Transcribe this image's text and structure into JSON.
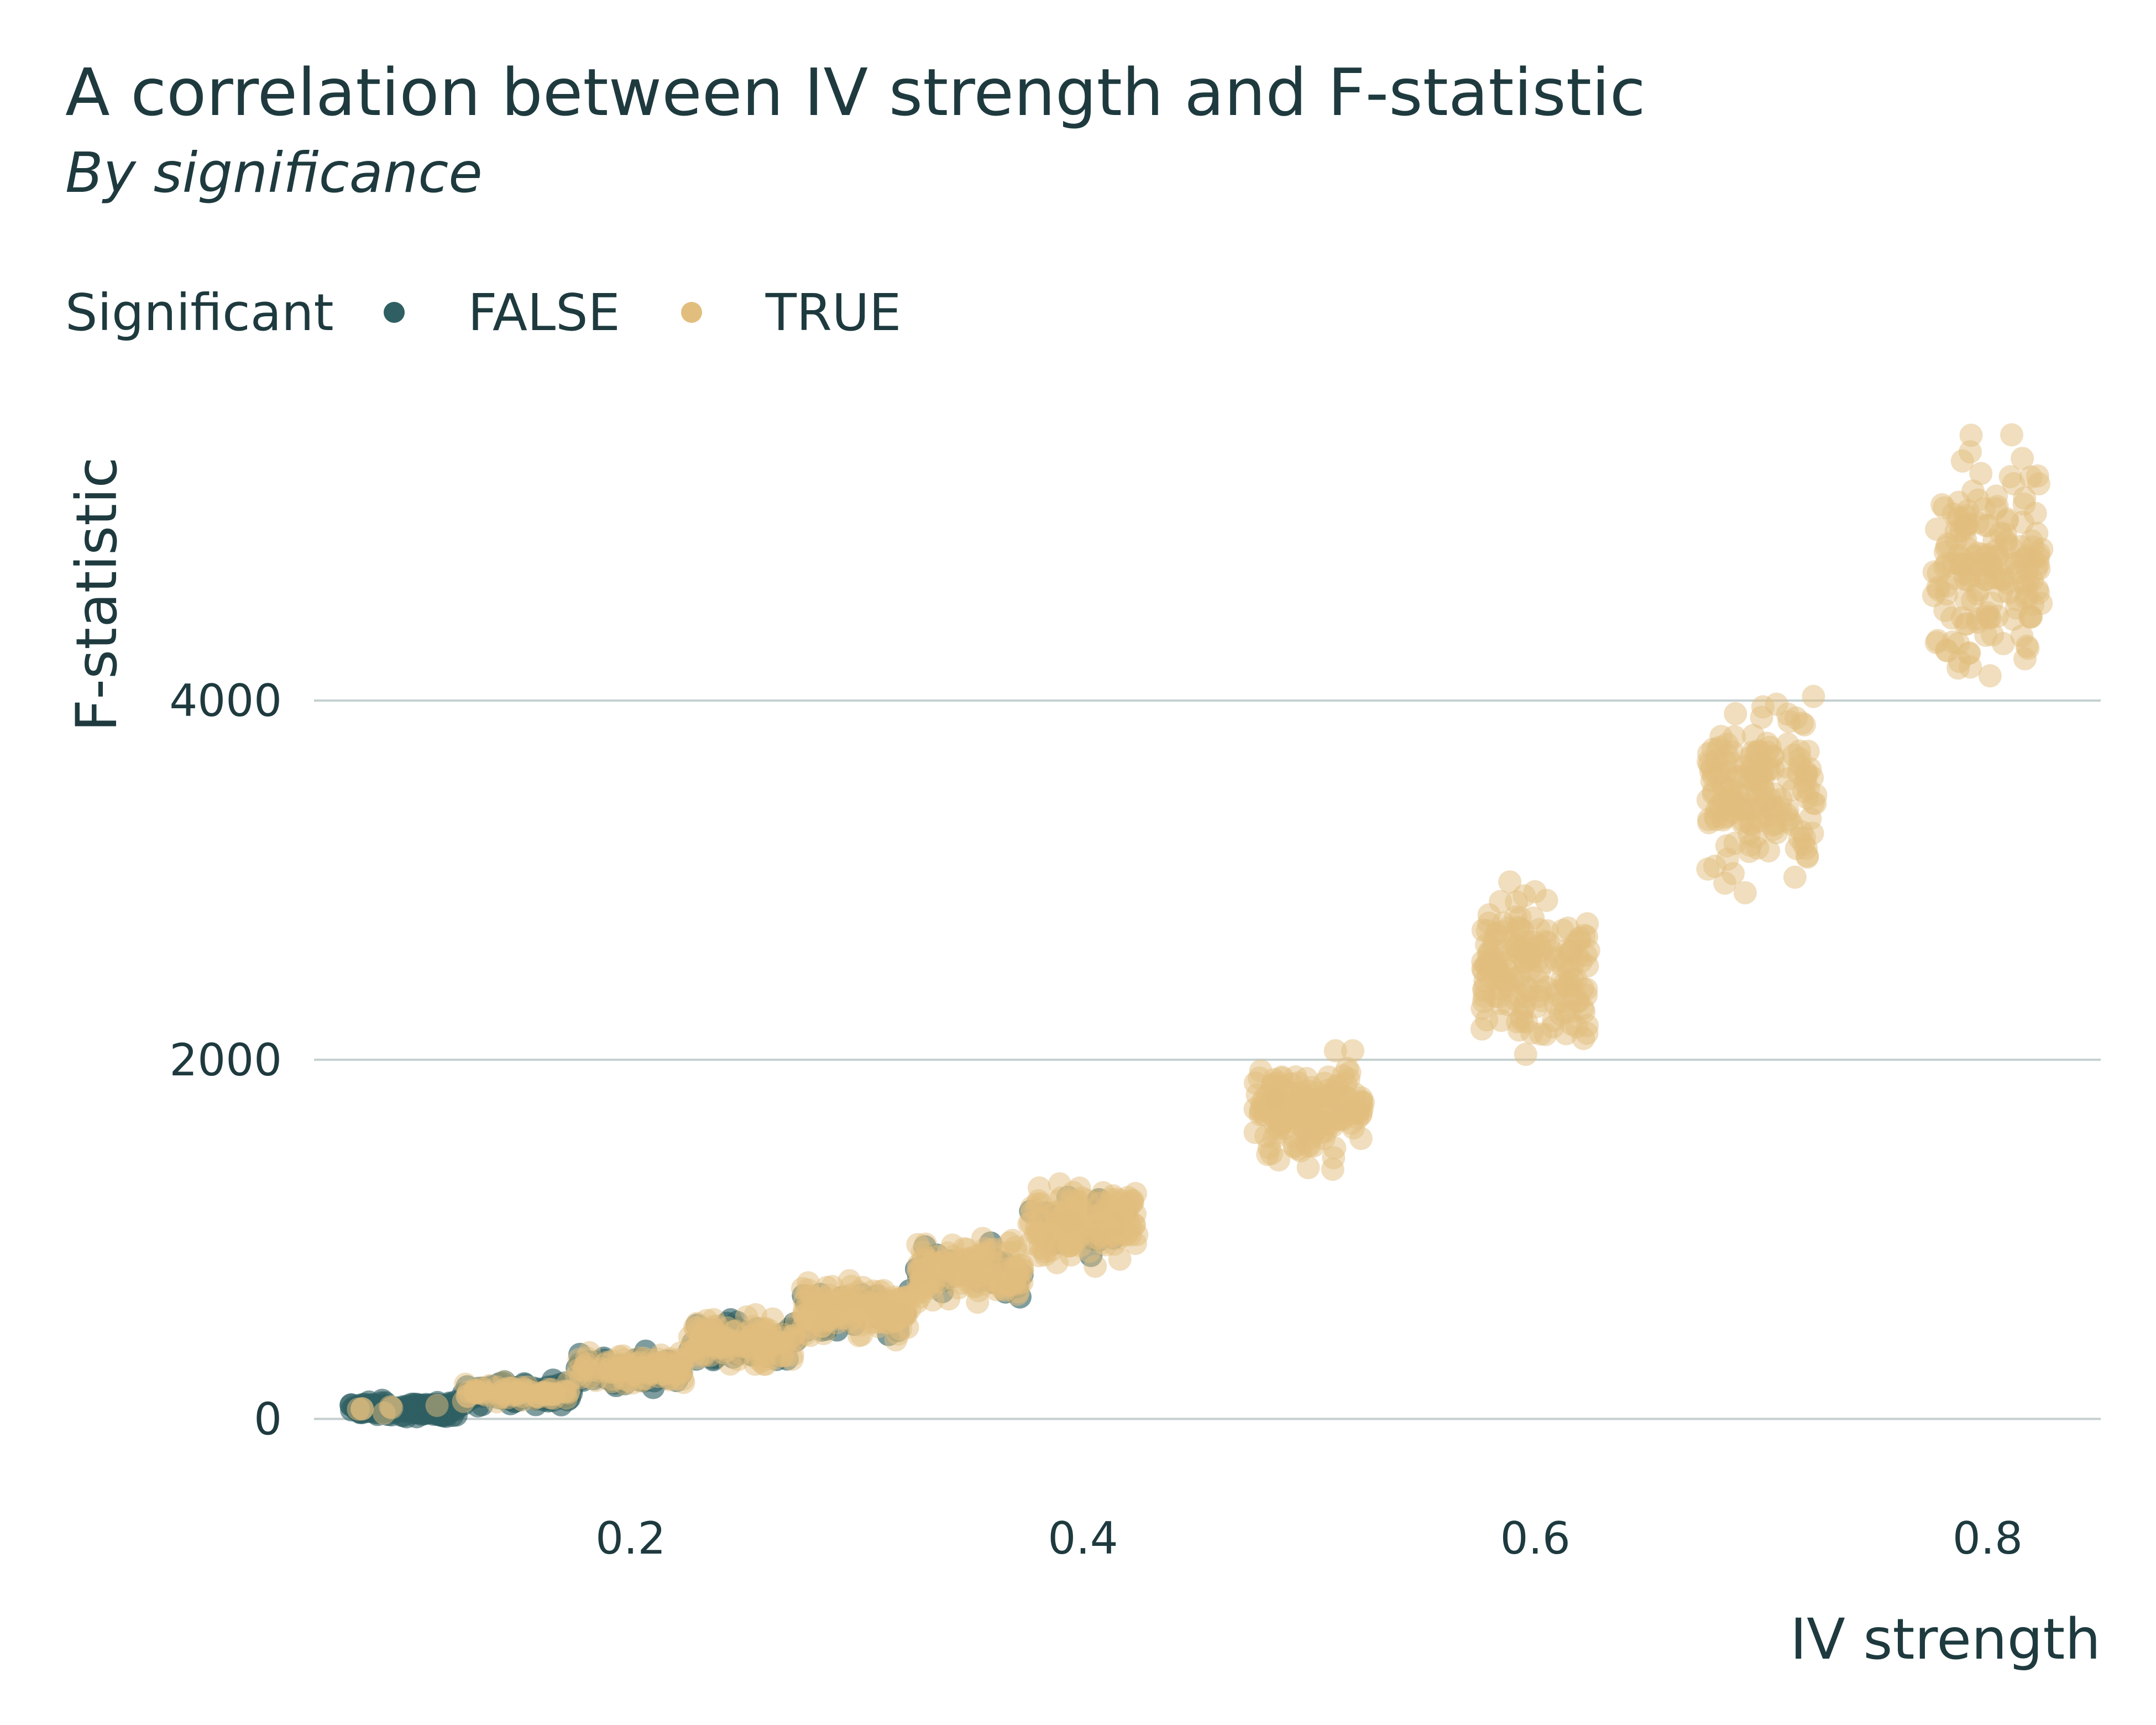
{
  "chart_data": {
    "type": "scatter",
    "title": "A correlation between IV strength and F-statistic",
    "subtitle": "By significance",
    "xlabel": "IV strength",
    "ylabel": "F-statistic",
    "xlim": [
      0.06,
      0.85
    ],
    "ylim": [
      -350,
      5500
    ],
    "xticks": [
      0.2,
      0.4,
      0.6,
      0.8
    ],
    "xtick_labels": [
      "0.2",
      "0.4",
      "0.6",
      "0.8"
    ],
    "yticks": [
      0,
      2000,
      4000
    ],
    "ytick_labels": [
      "0",
      "2000",
      "4000"
    ],
    "grid": "horizontal major only",
    "legend": {
      "title": "Significant",
      "position": "top-left",
      "entries": [
        {
          "label": "FALSE",
          "color": "#2f5f62"
        },
        {
          "label": "TRUE",
          "color": "#e2be7e"
        }
      ]
    },
    "clusters": [
      {
        "x": 0.1,
        "f_center": 55,
        "f_min": 10,
        "f_max": 110,
        "x_jitter": 0.024,
        "share_significant": 0.05
      },
      {
        "x": 0.15,
        "f_center": 145,
        "f_min": 70,
        "f_max": 220,
        "x_jitter": 0.024,
        "share_significant": 0.35
      },
      {
        "x": 0.2,
        "f_center": 270,
        "f_min": 160,
        "f_max": 390,
        "x_jitter": 0.024,
        "share_significant": 0.55
      },
      {
        "x": 0.25,
        "f_center": 430,
        "f_min": 290,
        "f_max": 580,
        "x_jitter": 0.024,
        "share_significant": 0.7
      },
      {
        "x": 0.3,
        "f_center": 610,
        "f_min": 440,
        "f_max": 800,
        "x_jitter": 0.024,
        "share_significant": 0.8
      },
      {
        "x": 0.35,
        "f_center": 830,
        "f_min": 650,
        "f_max": 1060,
        "x_jitter": 0.024,
        "share_significant": 0.85
      },
      {
        "x": 0.4,
        "f_center": 1100,
        "f_min": 850,
        "f_max": 1340,
        "x_jitter": 0.024,
        "share_significant": 0.9
      },
      {
        "x": 0.5,
        "f_center": 1700,
        "f_min": 1390,
        "f_max": 2050,
        "x_jitter": 0.024,
        "share_significant": 0.99
      },
      {
        "x": 0.6,
        "f_center": 2520,
        "f_min": 2030,
        "f_max": 2990,
        "x_jitter": 0.024,
        "share_significant": 1.0
      },
      {
        "x": 0.7,
        "f_center": 3500,
        "f_min": 2930,
        "f_max": 4110,
        "x_jitter": 0.024,
        "share_significant": 1.0
      },
      {
        "x": 0.8,
        "f_center": 4780,
        "f_min": 4030,
        "f_max": 5480,
        "x_jitter": 0.024,
        "share_significant": 1.0
      }
    ]
  }
}
